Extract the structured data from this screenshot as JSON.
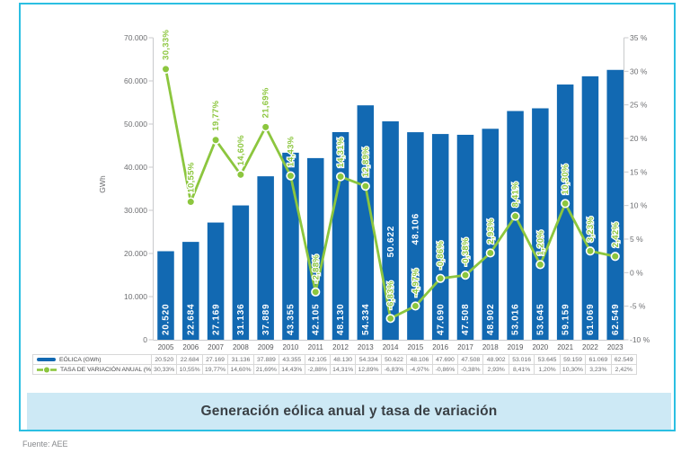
{
  "caption": "Generación eólica anual y tasa de variación",
  "source": "Fuente: AEE",
  "colors": {
    "bar_blue": "#1269b2",
    "line_green": "#8cc63e",
    "frame_cyan": "#2bbfe2",
    "caption_bg": "#cde9f5",
    "caption_text": "#3a4045",
    "axis_text": "#6d6e71",
    "year_text": "#58595b",
    "axis_line": "#c9cacc",
    "table_border": "#d8d8d8",
    "bar_label_text": "#ffffff"
  },
  "chart_data": {
    "type": "bar",
    "title": "Generación eólica anual y tasa de variación",
    "xlabel": "",
    "ylabel_left": "GWh",
    "ylabel_right": "",
    "grid": false,
    "legend_position": "bottom-table",
    "left_axis": {
      "min": 0,
      "max": 70000,
      "tick_labels": [
        "70.000",
        "60.000",
        "50.000",
        "40.000",
        "30.000",
        "20.000",
        "10.000",
        "0"
      ]
    },
    "right_axis": {
      "min": -10,
      "max": 35,
      "tick_labels": [
        "35 %",
        "30 %",
        "25 %",
        "20 %",
        "15 %",
        "10 %",
        "5 %",
        "0 %",
        "-5 %",
        "-10 %"
      ]
    },
    "categories": [
      "2005",
      "2006",
      "2007",
      "2008",
      "2009",
      "2010",
      "2011",
      "2012",
      "2013",
      "2014",
      "2015",
      "2016",
      "2017",
      "2018",
      "2019",
      "2020",
      "2021",
      "2022",
      "2023"
    ],
    "series": [
      {
        "name": "EÓLICA (GWh)",
        "type": "bar",
        "swatch": "blue-line",
        "values": [
          20520,
          22684,
          27169,
          31136,
          37889,
          43355,
          42105,
          48130,
          54334,
          50622,
          48106,
          47690,
          47508,
          48902,
          53016,
          53645,
          59159,
          61069,
          62549
        ],
        "labels": [
          "20.520",
          "22.684",
          "27.169",
          "31.136",
          "37.889",
          "43.355",
          "42.105",
          "48.130",
          "54.334",
          "50.622",
          "48.106",
          "47.690",
          "47.508",
          "48.902",
          "53.016",
          "53.645",
          "59.159",
          "61.069",
          "62.549"
        ]
      },
      {
        "name": "TASA DE VARIACIÓN ANUAL (%)",
        "type": "line",
        "swatch": "green-dash-dot",
        "values": [
          30.33,
          10.55,
          19.77,
          14.6,
          21.69,
          14.43,
          -2.88,
          14.31,
          12.89,
          -6.83,
          -4.97,
          -0.86,
          -0.38,
          2.93,
          8.41,
          1.2,
          10.3,
          3.23,
          2.42
        ],
        "labels": [
          "30,33%",
          "10,55%",
          "19,77%",
          "14,60%",
          "21,69%",
          "14,43%",
          "-2,88%",
          "14,31%",
          "12,89%",
          "-6,83%",
          "-4,97%",
          "-0,86%",
          "-0,38%",
          "2,93%",
          "8,41%",
          "1,20%",
          "10,30%",
          "3,23%",
          "2,42%"
        ]
      }
    ]
  }
}
